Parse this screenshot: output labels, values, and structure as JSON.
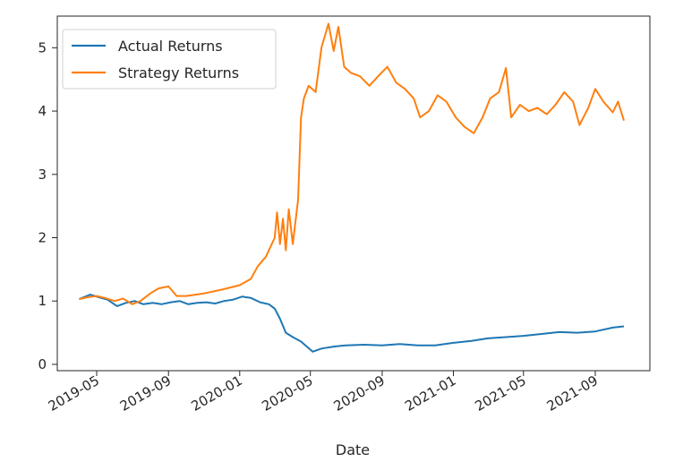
{
  "chart_data": {
    "type": "line",
    "title": "",
    "xlabel": "Date",
    "ylabel": "",
    "x_ticks": [
      "2019-05",
      "2019-09",
      "2020-01",
      "2020-05",
      "2020-09",
      "2021-01",
      "2021-05",
      "2021-09"
    ],
    "y_ticks": [
      0,
      1,
      2,
      3,
      4,
      5
    ],
    "ylim": [
      -0.1,
      5.5
    ],
    "legend": "top-left",
    "grid": false,
    "series": [
      {
        "name": "Actual Returns",
        "color": "#1f77b4",
        "points": [
          [
            "2019-04-01",
            1.03
          ],
          [
            "2019-04-20",
            1.1
          ],
          [
            "2019-05-05",
            1.06
          ],
          [
            "2019-05-20",
            1.02
          ],
          [
            "2019-06-05",
            0.92
          ],
          [
            "2019-06-20",
            0.97
          ],
          [
            "2019-07-05",
            1.0
          ],
          [
            "2019-07-20",
            0.95
          ],
          [
            "2019-08-05",
            0.97
          ],
          [
            "2019-08-20",
            0.95
          ],
          [
            "2019-09-05",
            0.98
          ],
          [
            "2019-09-20",
            1.0
          ],
          [
            "2019-10-05",
            0.95
          ],
          [
            "2019-10-20",
            0.97
          ],
          [
            "2019-11-05",
            0.98
          ],
          [
            "2019-11-20",
            0.96
          ],
          [
            "2019-12-05",
            1.0
          ],
          [
            "2019-12-20",
            1.02
          ],
          [
            "2020-01-05",
            1.07
          ],
          [
            "2020-01-20",
            1.05
          ],
          [
            "2020-02-05",
            0.98
          ],
          [
            "2020-02-20",
            0.95
          ],
          [
            "2020-03-01",
            0.88
          ],
          [
            "2020-03-10",
            0.72
          ],
          [
            "2020-03-20",
            0.5
          ],
          [
            "2020-04-01",
            0.43
          ],
          [
            "2020-04-15",
            0.36
          ],
          [
            "2020-04-25",
            0.28
          ],
          [
            "2020-05-05",
            0.2
          ],
          [
            "2020-05-20",
            0.25
          ],
          [
            "2020-06-10",
            0.28
          ],
          [
            "2020-07-01",
            0.3
          ],
          [
            "2020-08-01",
            0.31
          ],
          [
            "2020-09-01",
            0.3
          ],
          [
            "2020-10-01",
            0.32
          ],
          [
            "2020-11-01",
            0.3
          ],
          [
            "2020-12-01",
            0.3
          ],
          [
            "2021-01-01",
            0.34
          ],
          [
            "2021-02-01",
            0.37
          ],
          [
            "2021-03-01",
            0.41
          ],
          [
            "2021-04-01",
            0.43
          ],
          [
            "2021-05-01",
            0.45
          ],
          [
            "2021-06-01",
            0.48
          ],
          [
            "2021-07-01",
            0.51
          ],
          [
            "2021-08-01",
            0.5
          ],
          [
            "2021-09-01",
            0.52
          ],
          [
            "2021-10-01",
            0.58
          ],
          [
            "2021-10-20",
            0.6
          ]
        ]
      },
      {
        "name": "Strategy Returns",
        "color": "#ff7f0e",
        "points": [
          [
            "2019-04-01",
            1.03
          ],
          [
            "2019-04-15",
            1.06
          ],
          [
            "2019-05-01",
            1.08
          ],
          [
            "2019-05-15",
            1.05
          ],
          [
            "2019-06-01",
            1.0
          ],
          [
            "2019-06-15",
            1.04
          ],
          [
            "2019-07-01",
            0.95
          ],
          [
            "2019-07-15",
            1.0
          ],
          [
            "2019-08-01",
            1.12
          ],
          [
            "2019-08-15",
            1.2
          ],
          [
            "2019-09-01",
            1.23
          ],
          [
            "2019-09-15",
            1.08
          ],
          [
            "2019-10-01",
            1.08
          ],
          [
            "2019-11-01",
            1.12
          ],
          [
            "2019-12-01",
            1.18
          ],
          [
            "2020-01-01",
            1.25
          ],
          [
            "2020-01-20",
            1.35
          ],
          [
            "2020-02-01",
            1.55
          ],
          [
            "2020-02-15",
            1.7
          ],
          [
            "2020-03-01",
            2.0
          ],
          [
            "2020-03-05",
            2.4
          ],
          [
            "2020-03-10",
            1.9
          ],
          [
            "2020-03-15",
            2.3
          ],
          [
            "2020-03-20",
            1.8
          ],
          [
            "2020-03-25",
            2.45
          ],
          [
            "2020-04-01",
            1.9
          ],
          [
            "2020-04-10",
            2.6
          ],
          [
            "2020-04-15",
            3.9
          ],
          [
            "2020-04-20",
            4.2
          ],
          [
            "2020-04-28",
            4.4
          ],
          [
            "2020-05-10",
            4.3
          ],
          [
            "2020-05-20",
            5.0
          ],
          [
            "2020-06-01",
            5.38
          ],
          [
            "2020-06-10",
            4.95
          ],
          [
            "2020-06-18",
            5.33
          ],
          [
            "2020-06-28",
            4.7
          ],
          [
            "2020-07-10",
            4.6
          ],
          [
            "2020-07-25",
            4.55
          ],
          [
            "2020-08-10",
            4.4
          ],
          [
            "2020-08-25",
            4.55
          ],
          [
            "2020-09-10",
            4.7
          ],
          [
            "2020-09-25",
            4.45
          ],
          [
            "2020-10-10",
            4.35
          ],
          [
            "2020-10-25",
            4.2
          ],
          [
            "2020-11-05",
            3.9
          ],
          [
            "2020-11-20",
            4.0
          ],
          [
            "2020-12-05",
            4.25
          ],
          [
            "2020-12-20",
            4.15
          ],
          [
            "2021-01-05",
            3.9
          ],
          [
            "2021-01-20",
            3.75
          ],
          [
            "2021-02-05",
            3.65
          ],
          [
            "2021-02-20",
            3.9
          ],
          [
            "2021-03-05",
            4.2
          ],
          [
            "2021-03-20",
            4.3
          ],
          [
            "2021-04-01",
            4.68
          ],
          [
            "2021-04-10",
            3.9
          ],
          [
            "2021-04-25",
            4.1
          ],
          [
            "2021-05-10",
            4.0
          ],
          [
            "2021-05-25",
            4.05
          ],
          [
            "2021-06-10",
            3.95
          ],
          [
            "2021-06-25",
            4.1
          ],
          [
            "2021-07-10",
            4.3
          ],
          [
            "2021-07-25",
            4.15
          ],
          [
            "2021-08-05",
            3.78
          ],
          [
            "2021-08-20",
            4.05
          ],
          [
            "2021-09-01",
            4.35
          ],
          [
            "2021-09-15",
            4.15
          ],
          [
            "2021-10-01",
            3.98
          ],
          [
            "2021-10-10",
            4.15
          ],
          [
            "2021-10-20",
            3.85
          ]
        ]
      }
    ]
  }
}
